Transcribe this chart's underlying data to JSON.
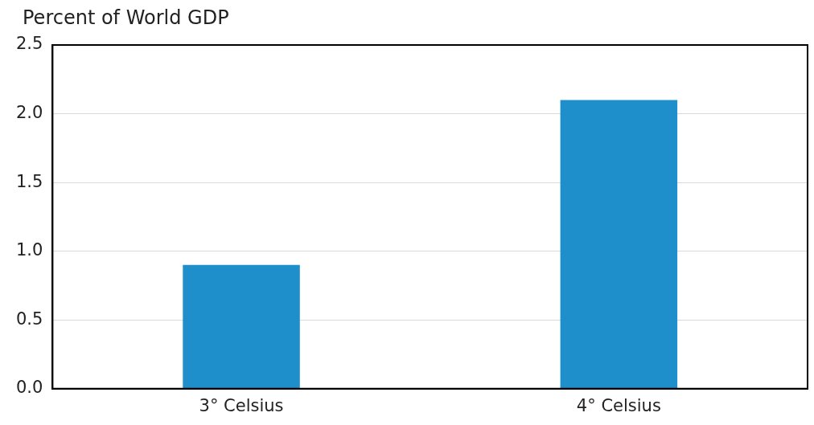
{
  "chart_data": {
    "type": "bar",
    "ylabel": "Percent of World GDP",
    "categories": [
      "3° Celsius",
      "4° Celsius"
    ],
    "values": [
      0.9,
      2.1
    ],
    "color": "#1f8fcc",
    "ylim": [
      0,
      2.5
    ],
    "yticks": [
      {
        "value": 0,
        "label": "0.0"
      },
      0.5,
      {
        "value": 1,
        "label": "1.0"
      },
      1.5,
      {
        "value": 2,
        "label": "2.0"
      },
      2.5
    ],
    "grid": "y",
    "legend": false
  }
}
